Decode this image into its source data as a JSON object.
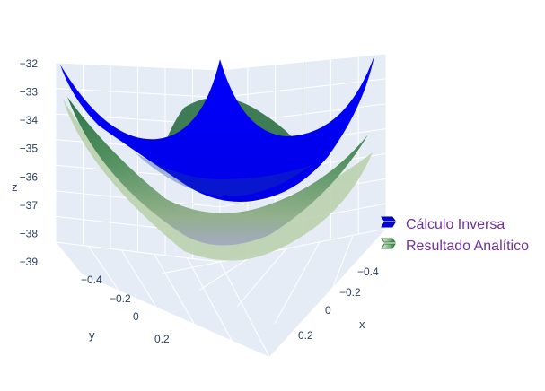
{
  "chart_data": {
    "type": "surface",
    "title": "",
    "axes": {
      "x": {
        "title": "x",
        "ticks": [
          "−0.4",
          "−0.2",
          "0",
          "0.2"
        ],
        "range": [
          -0.5,
          0.5
        ]
      },
      "y": {
        "title": "y",
        "ticks": [
          "−0.4",
          "−0.2",
          "0",
          "0.2"
        ],
        "range": [
          -0.5,
          0.5
        ]
      },
      "z": {
        "title": "z",
        "ticks": [
          "−32",
          "−33",
          "−34",
          "−35",
          "−36",
          "−37",
          "−38",
          "−39"
        ],
        "range": [
          -39,
          -32
        ]
      }
    },
    "series": [
      {
        "name": "Cálculo Inversa",
        "color": "#0000ff",
        "surface": "paraboloid",
        "z_min": -36.0,
        "z_max": -32.0
      },
      {
        "name": "Resultado Analítico",
        "color": "#2e7d32",
        "surface": "paraboloid",
        "z_min": -38.8,
        "z_max": -34.5
      }
    ],
    "legend": {
      "position": "right"
    },
    "scene_background": "#e5ecf6",
    "grid": true
  }
}
